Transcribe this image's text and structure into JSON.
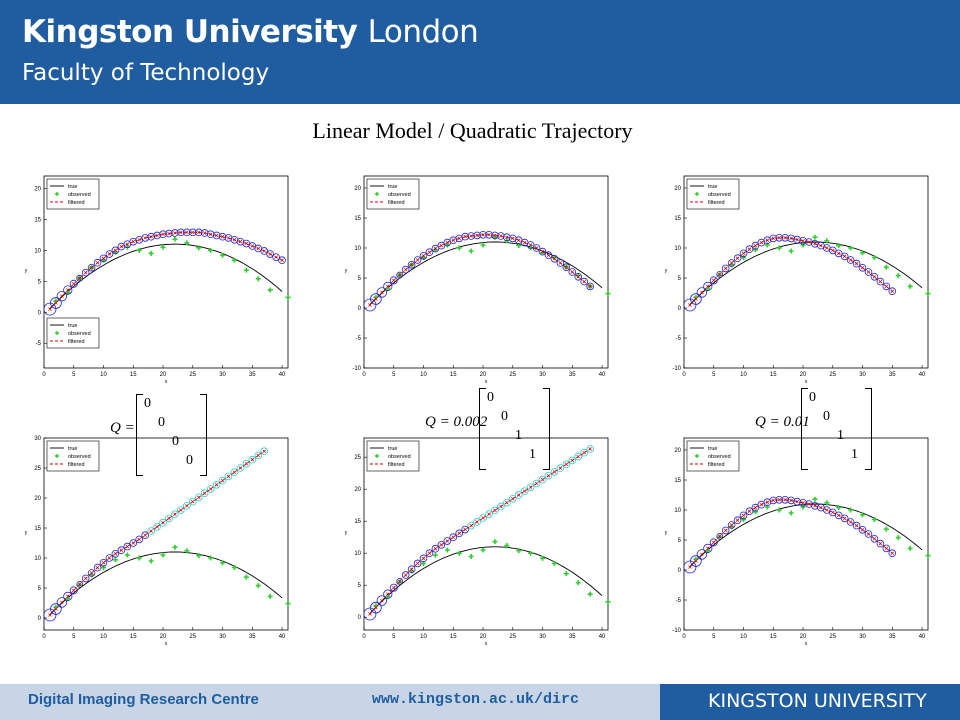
{
  "header": {
    "university_bold": "Kingston University",
    "university_light": "London",
    "faculty": "Faculty of Technology"
  },
  "slide_title": "Linear Model / Quadratic Trajectory",
  "footer": {
    "centre": "Digital Imaging Research Centre",
    "url": "www.kingston.ac.uk/dirc",
    "brand": "KINGSTON UNIVERSITY"
  },
  "colors": {
    "header_blue": "#1f5da0",
    "true_line": "#000000",
    "observed": "#33cc33",
    "filtered": "#cc0000",
    "ellipse": "#2222cc",
    "ellipse_diverged": "#33cccc"
  },
  "legend": {
    "true": "true",
    "observed": "observed",
    "filtered": "filtered"
  },
  "matrices": [
    {
      "label": "Q =",
      "diag": [
        "0",
        "0",
        "0",
        "0"
      ]
    },
    {
      "label": "Q = 0.002",
      "diag": [
        "0",
        "0",
        "1",
        "1"
      ]
    },
    {
      "label": "Q = 0.01",
      "diag": [
        "0",
        "0",
        "1",
        "1"
      ]
    }
  ],
  "chart_data": [
    {
      "type": "line",
      "panel": "top-left",
      "xlabel": "x",
      "ylabel": "y",
      "xlim": [
        0,
        41
      ],
      "ylim": [
        -9,
        22
      ],
      "xticks": [
        0,
        5,
        10,
        15,
        20,
        25,
        30,
        35,
        40
      ],
      "yticks": [
        -5,
        0,
        5,
        10,
        15,
        20
      ],
      "legend_position": [
        "top-left",
        "bottom-left"
      ],
      "filtered_y": [
        0.5,
        1.5,
        2.6,
        3.6,
        4.6,
        5.5,
        6.4,
        7.2,
        8.0,
        8.7,
        9.4,
        10.0,
        10.6,
        11.0,
        11.4,
        11.7,
        12.0,
        12.2,
        12.4,
        12.6,
        12.7,
        12.8,
        12.9,
        12.9,
        12.9,
        12.9,
        12.8,
        12.6,
        12.4,
        12.2,
        12.0,
        11.7,
        11.4,
        11.1,
        10.7,
        10.3,
        9.9,
        9.4,
        8.9,
        8.4
      ],
      "divergence": false
    },
    {
      "type": "line",
      "panel": "top-center",
      "xlabel": "x",
      "ylabel": "y",
      "xlim": [
        0,
        41
      ],
      "ylim": [
        -10,
        22
      ],
      "xticks": [
        0,
        5,
        10,
        15,
        20,
        25,
        30,
        35,
        40
      ],
      "yticks": [
        -10,
        -5,
        0,
        5,
        10,
        15,
        20
      ],
      "legend_position": "top-left",
      "filtered_y": [
        0.5,
        1.5,
        2.6,
        3.6,
        4.6,
        5.5,
        6.4,
        7.2,
        8.0,
        8.7,
        9.3,
        9.9,
        10.4,
        10.9,
        11.3,
        11.6,
        11.9,
        12.0,
        12.1,
        12.2,
        12.2,
        12.1,
        12.0,
        11.8,
        11.6,
        11.3,
        10.9,
        10.5,
        10.0,
        9.4,
        8.8,
        8.2,
        7.5,
        6.8,
        6.0,
        5.2,
        4.4,
        3.6
      ],
      "divergence": false
    },
    {
      "type": "line",
      "panel": "top-right",
      "xlabel": "x",
      "ylabel": "y",
      "xlim": [
        0,
        41
      ],
      "ylim": [
        -10,
        22
      ],
      "xticks": [
        0,
        5,
        10,
        15,
        20,
        25,
        30,
        35,
        40
      ],
      "yticks": [
        -10,
        -5,
        0,
        5,
        10,
        15,
        20
      ],
      "legend_position": "top-left",
      "filtered_y": [
        0.5,
        1.5,
        2.6,
        3.6,
        4.6,
        5.6,
        6.6,
        7.5,
        8.3,
        9.1,
        9.8,
        10.4,
        10.9,
        11.3,
        11.6,
        11.7,
        11.7,
        11.6,
        11.4,
        11.2,
        11.0,
        10.7,
        10.4,
        10.0,
        9.6,
        9.1,
        8.6,
        8.0,
        7.4,
        6.7,
        6.0,
        5.2,
        4.4,
        3.6,
        2.8
      ],
      "divergence": false
    },
    {
      "type": "line",
      "panel": "bottom-left",
      "xlabel": "x",
      "ylabel": "y",
      "xlim": [
        0,
        41
      ],
      "ylim": [
        -2,
        30
      ],
      "xticks": [
        0,
        5,
        10,
        15,
        20,
        25,
        30,
        35,
        40
      ],
      "yticks": [
        0,
        5,
        10,
        15,
        20,
        25,
        30
      ],
      "legend_position": "top-left",
      "filtered_y": [
        0.5,
        1.5,
        2.6,
        3.6,
        4.6,
        5.6,
        6.6,
        7.5,
        8.4,
        9.2,
        10.0,
        10.7,
        11.3,
        11.9,
        12.5,
        13.1,
        13.8,
        14.5,
        15.2,
        15.9,
        16.6,
        17.3,
        18.0,
        18.7,
        19.4,
        20.1,
        20.8,
        21.5,
        22.2,
        22.9,
        23.6,
        24.3,
        25.0,
        25.7,
        26.4,
        27.1,
        27.8
      ],
      "divergence": true
    },
    {
      "type": "line",
      "panel": "bottom-center",
      "xlabel": "x",
      "ylabel": "y",
      "xlim": [
        0,
        41
      ],
      "ylim": [
        -2,
        28
      ],
      "xticks": [
        0,
        5,
        10,
        15,
        20,
        25,
        30,
        35,
        40
      ],
      "yticks": [
        0,
        5,
        10,
        15,
        20,
        25
      ],
      "legend_position": "top-left",
      "filtered_y": [
        0.5,
        1.5,
        2.6,
        3.6,
        4.6,
        5.6,
        6.6,
        7.5,
        8.4,
        9.2,
        10.0,
        10.7,
        11.3,
        11.9,
        12.5,
        13.1,
        13.7,
        14.3,
        14.9,
        15.5,
        16.1,
        16.7,
        17.3,
        17.9,
        18.5,
        19.1,
        19.7,
        20.3,
        20.9,
        21.5,
        22.1,
        22.7,
        23.3,
        23.9,
        24.5,
        25.1,
        25.7,
        26.3
      ],
      "divergence": true
    },
    {
      "type": "line",
      "panel": "bottom-right",
      "xlabel": "x",
      "ylabel": "y",
      "xlim": [
        0,
        41
      ],
      "ylim": [
        -10,
        22
      ],
      "xticks": [
        0,
        5,
        10,
        15,
        20,
        25,
        30,
        35,
        40
      ],
      "yticks": [
        -10,
        -5,
        0,
        5,
        10,
        15,
        20
      ],
      "legend_position": "top-left",
      "filtered_y": [
        0.5,
        1.5,
        2.6,
        3.6,
        4.6,
        5.6,
        6.6,
        7.5,
        8.3,
        9.1,
        9.8,
        10.4,
        10.9,
        11.3,
        11.6,
        11.7,
        11.7,
        11.6,
        11.4,
        11.2,
        11.0,
        10.7,
        10.4,
        10.0,
        9.6,
        9.1,
        8.6,
        8.0,
        7.4,
        6.7,
        6.0,
        5.2,
        4.4,
        3.6,
        2.8
      ],
      "divergence": false
    }
  ],
  "true_trajectory": {
    "vertex_x": 22,
    "vertex_y": 11,
    "start_x": 1,
    "end_x": 40,
    "x": [
      1,
      5,
      10,
      15,
      20,
      22,
      25,
      30,
      35,
      40
    ],
    "y": [
      0.6,
      4.6,
      8.3,
      10.5,
      11.0,
      11.0,
      10.8,
      8.9,
      5.8,
      1.4
    ]
  },
  "observed": {
    "x": [
      2,
      4,
      6,
      8,
      10,
      12,
      14,
      16,
      18,
      20,
      22,
      24,
      26,
      28,
      30,
      32,
      34,
      36,
      38,
      41
    ],
    "y": [
      1.8,
      3.2,
      5.5,
      7.2,
      8.4,
      9.7,
      10.5,
      10.0,
      9.5,
      10.5,
      11.8,
      11.2,
      10.4,
      10.0,
      9.2,
      8.4,
      6.8,
      5.4,
      3.6,
      2.4
    ]
  }
}
